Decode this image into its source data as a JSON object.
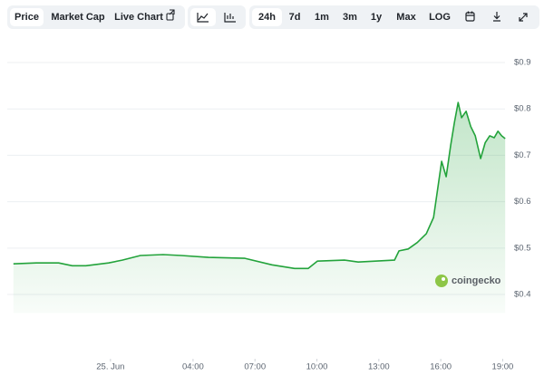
{
  "toolbar": {
    "tabs": [
      "Price",
      "Market Cap",
      "Live Chart"
    ],
    "ranges": [
      "24h",
      "7d",
      "1m",
      "3m",
      "1y",
      "Max",
      "LOG"
    ]
  },
  "chart_data": {
    "type": "area",
    "series": [
      {
        "name": "Price",
        "color": "#23a33b",
        "x": [
          -4.7,
          -3.6,
          -2.51,
          -1.85,
          -1.19,
          -0.09,
          0.57,
          1.45,
          2.55,
          3.43,
          4.75,
          6.51,
          7.82,
          8.92,
          9.58,
          10.02,
          11.34,
          12.0,
          13.76,
          13.98,
          14.42,
          14.86,
          15.3,
          15.65,
          15.87,
          16.04,
          16.26,
          16.48,
          16.66,
          16.84,
          17.01,
          17.23,
          17.45,
          17.67,
          17.93,
          18.15,
          18.37,
          18.59,
          18.77,
          18.95,
          19.12
        ],
        "values": [
          0.466,
          0.468,
          0.468,
          0.462,
          0.462,
          0.468,
          0.474,
          0.484,
          0.486,
          0.484,
          0.48,
          0.478,
          0.464,
          0.456,
          0.456,
          0.472,
          0.474,
          0.47,
          0.474,
          0.494,
          0.498,
          0.512,
          0.531,
          0.566,
          0.634,
          0.687,
          0.654,
          0.722,
          0.771,
          0.814,
          0.781,
          0.795,
          0.762,
          0.742,
          0.693,
          0.727,
          0.742,
          0.738,
          0.752,
          0.742,
          0.736
        ]
      }
    ],
    "xlim": [
      -5,
      19.2
    ],
    "xticks": [
      {
        "value": 0,
        "label": "25. Jun"
      },
      {
        "value": 4,
        "label": "04:00"
      },
      {
        "value": 7,
        "label": "07:00"
      },
      {
        "value": 10,
        "label": "10:00"
      },
      {
        "value": 13,
        "label": "13:00"
      },
      {
        "value": 16,
        "label": "16:00"
      },
      {
        "value": 19,
        "label": "19:00"
      }
    ],
    "ylim": [
      0.36,
      0.96
    ],
    "yticks": [
      {
        "value": 0.4,
        "label": "$0.4"
      },
      {
        "value": 0.5,
        "label": "$0.5"
      },
      {
        "value": 0.6,
        "label": "$0.6"
      },
      {
        "value": 0.7,
        "label": "$0.7"
      },
      {
        "value": 0.8,
        "label": "$0.8"
      },
      {
        "value": 0.9,
        "label": "$0.9"
      }
    ],
    "grid": true,
    "watermark": "coingecko"
  }
}
